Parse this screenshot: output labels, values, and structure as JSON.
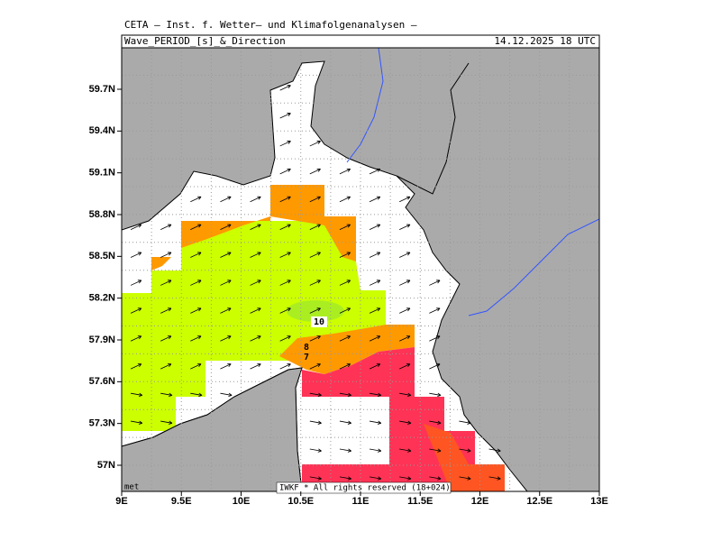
{
  "header": {
    "institute": "CETA – Inst. f. Wetter– und Klimafolgenanalysen –",
    "title": "Wave_PERIOD_[s]_&_Direction",
    "datetime": "14.12.2025 18 UTC"
  },
  "map": {
    "lon_ticks": [
      {
        "value": 9,
        "label": "9E"
      },
      {
        "value": 9.5,
        "label": "9.5E"
      },
      {
        "value": 10,
        "label": "10E"
      },
      {
        "value": 10.5,
        "label": "10.5E"
      },
      {
        "value": 11,
        "label": "11E"
      },
      {
        "value": 11.5,
        "label": "11.5E"
      },
      {
        "value": 12,
        "label": "12E"
      },
      {
        "value": 12.5,
        "label": "12.5E"
      },
      {
        "value": 13,
        "label": "13E"
      }
    ],
    "lat_ticks": [
      {
        "value": 57,
        "label": "57N"
      },
      {
        "value": 57.3,
        "label": "57.3N"
      },
      {
        "value": 57.6,
        "label": "57.6N"
      },
      {
        "value": 57.9,
        "label": "57.9N"
      },
      {
        "value": 58.2,
        "label": "58.2N"
      },
      {
        "value": 58.5,
        "label": "58.5N"
      },
      {
        "value": 58.8,
        "label": "58.8N"
      },
      {
        "value": 59.1,
        "label": "59.1N"
      },
      {
        "value": 59.4,
        "label": "59.4N"
      },
      {
        "value": 59.7,
        "label": "59.7N"
      }
    ],
    "contour_labels": [
      "10",
      "8",
      "7"
    ],
    "footer_left": "met",
    "footer_right": "IWKF * All rights reserved (18+024)"
  }
}
